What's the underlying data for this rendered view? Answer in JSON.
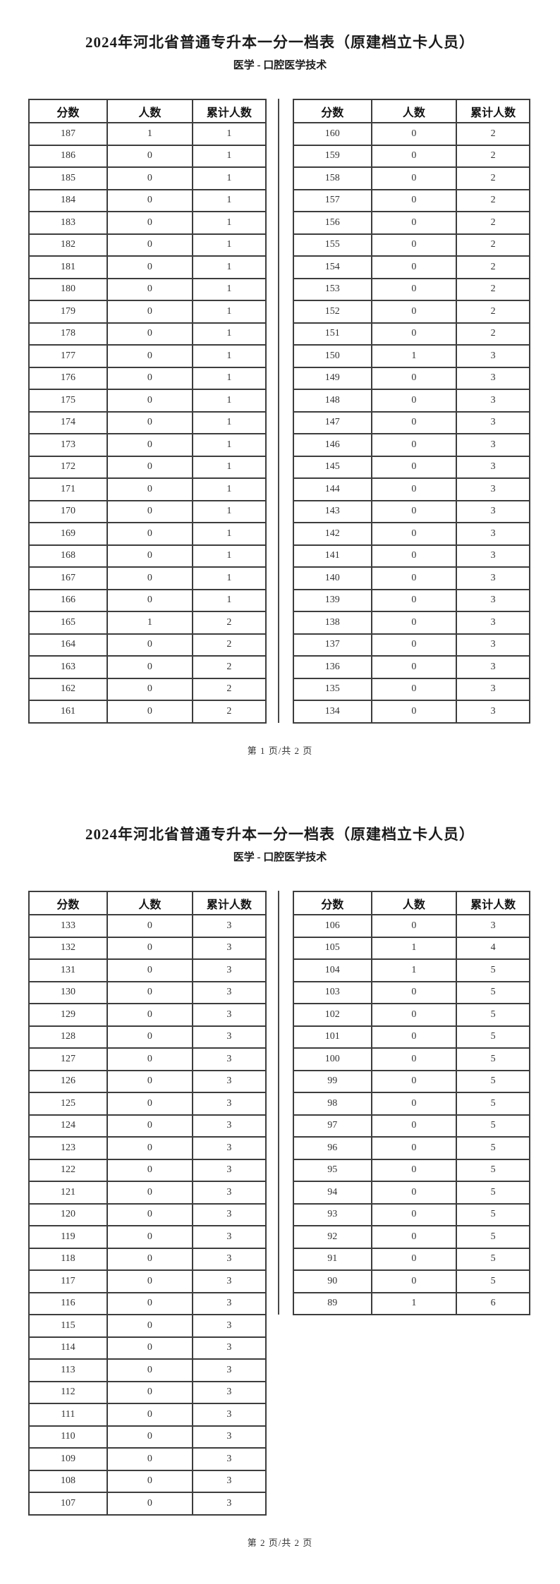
{
  "document": {
    "colors": {
      "text": "#222222",
      "border": "#3d3d3d",
      "background": "#ffffff"
    }
  },
  "pages": [
    {
      "title": "2024年河北省普通专升本一分一档表（原建档立卡人员）",
      "subtitle": "医学 - 口腔医学技术",
      "footer": "第 1 页/共 2 页",
      "left_table": {
        "headers": [
          "分数",
          "人数",
          "累计人数"
        ],
        "rows": [
          [
            187,
            1,
            1
          ],
          [
            186,
            0,
            1
          ],
          [
            185,
            0,
            1
          ],
          [
            184,
            0,
            1
          ],
          [
            183,
            0,
            1
          ],
          [
            182,
            0,
            1
          ],
          [
            181,
            0,
            1
          ],
          [
            180,
            0,
            1
          ],
          [
            179,
            0,
            1
          ],
          [
            178,
            0,
            1
          ],
          [
            177,
            0,
            1
          ],
          [
            176,
            0,
            1
          ],
          [
            175,
            0,
            1
          ],
          [
            174,
            0,
            1
          ],
          [
            173,
            0,
            1
          ],
          [
            172,
            0,
            1
          ],
          [
            171,
            0,
            1
          ],
          [
            170,
            0,
            1
          ],
          [
            169,
            0,
            1
          ],
          [
            168,
            0,
            1
          ],
          [
            167,
            0,
            1
          ],
          [
            166,
            0,
            1
          ],
          [
            165,
            1,
            2
          ],
          [
            164,
            0,
            2
          ],
          [
            163,
            0,
            2
          ],
          [
            162,
            0,
            2
          ],
          [
            161,
            0,
            2
          ]
        ]
      },
      "right_table": {
        "headers": [
          "分数",
          "人数",
          "累计人数"
        ],
        "rows": [
          [
            160,
            0,
            2
          ],
          [
            159,
            0,
            2
          ],
          [
            158,
            0,
            2
          ],
          [
            157,
            0,
            2
          ],
          [
            156,
            0,
            2
          ],
          [
            155,
            0,
            2
          ],
          [
            154,
            0,
            2
          ],
          [
            153,
            0,
            2
          ],
          [
            152,
            0,
            2
          ],
          [
            151,
            0,
            2
          ],
          [
            150,
            1,
            3
          ],
          [
            149,
            0,
            3
          ],
          [
            148,
            0,
            3
          ],
          [
            147,
            0,
            3
          ],
          [
            146,
            0,
            3
          ],
          [
            145,
            0,
            3
          ],
          [
            144,
            0,
            3
          ],
          [
            143,
            0,
            3
          ],
          [
            142,
            0,
            3
          ],
          [
            141,
            0,
            3
          ],
          [
            140,
            0,
            3
          ],
          [
            139,
            0,
            3
          ],
          [
            138,
            0,
            3
          ],
          [
            137,
            0,
            3
          ],
          [
            136,
            0,
            3
          ],
          [
            135,
            0,
            3
          ],
          [
            134,
            0,
            3
          ]
        ]
      }
    },
    {
      "title": "2024年河北省普通专升本一分一档表（原建档立卡人员）",
      "subtitle": "医学 - 口腔医学技术",
      "footer": "第 2 页/共 2 页",
      "left_table": {
        "headers": [
          "分数",
          "人数",
          "累计人数"
        ],
        "rows": [
          [
            133,
            0,
            3
          ],
          [
            132,
            0,
            3
          ],
          [
            131,
            0,
            3
          ],
          [
            130,
            0,
            3
          ],
          [
            129,
            0,
            3
          ],
          [
            128,
            0,
            3
          ],
          [
            127,
            0,
            3
          ],
          [
            126,
            0,
            3
          ],
          [
            125,
            0,
            3
          ],
          [
            124,
            0,
            3
          ],
          [
            123,
            0,
            3
          ],
          [
            122,
            0,
            3
          ],
          [
            121,
            0,
            3
          ],
          [
            120,
            0,
            3
          ],
          [
            119,
            0,
            3
          ],
          [
            118,
            0,
            3
          ],
          [
            117,
            0,
            3
          ],
          [
            116,
            0,
            3
          ],
          [
            115,
            0,
            3
          ],
          [
            114,
            0,
            3
          ],
          [
            113,
            0,
            3
          ],
          [
            112,
            0,
            3
          ],
          [
            111,
            0,
            3
          ],
          [
            110,
            0,
            3
          ],
          [
            109,
            0,
            3
          ],
          [
            108,
            0,
            3
          ],
          [
            107,
            0,
            3
          ]
        ]
      },
      "right_table": {
        "headers": [
          "分数",
          "人数",
          "累计人数"
        ],
        "rows": [
          [
            106,
            0,
            3
          ],
          [
            105,
            1,
            4
          ],
          [
            104,
            1,
            5
          ],
          [
            103,
            0,
            5
          ],
          [
            102,
            0,
            5
          ],
          [
            101,
            0,
            5
          ],
          [
            100,
            0,
            5
          ],
          [
            99,
            0,
            5
          ],
          [
            98,
            0,
            5
          ],
          [
            97,
            0,
            5
          ],
          [
            96,
            0,
            5
          ],
          [
            95,
            0,
            5
          ],
          [
            94,
            0,
            5
          ],
          [
            93,
            0,
            5
          ],
          [
            92,
            0,
            5
          ],
          [
            91,
            0,
            5
          ],
          [
            90,
            0,
            5
          ],
          [
            89,
            1,
            6
          ]
        ]
      }
    }
  ]
}
